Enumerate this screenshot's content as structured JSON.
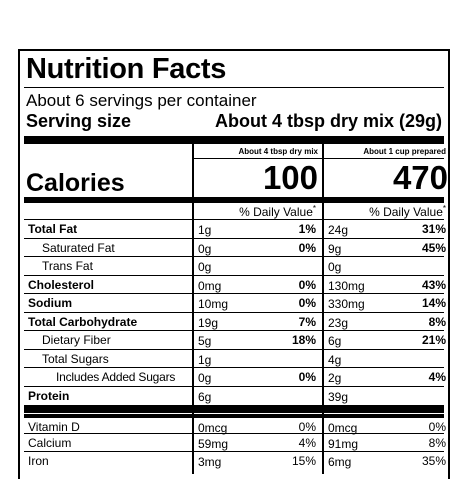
{
  "label": {
    "title": "Nutrition Facts",
    "servings": "About 6 servings per container",
    "serving_size_label": "Serving size",
    "serving_size_value": "About 4 tbsp dry mix (29g)",
    "col1_header": "About 4 tbsp dry mix",
    "col2_header": "About 1 cup prepared",
    "calories_label": "Calories",
    "calories_col1": "100",
    "calories_col2": "470",
    "dv_header": "% Daily Value",
    "dv_asterisk": "*",
    "rows": [
      {
        "name": "Total Fat",
        "bold": true,
        "a1": "1g",
        "p1": "1%",
        "a2": "24g",
        "p2": "31%"
      },
      {
        "name": "Saturated Fat",
        "bold": false,
        "a1": "0g",
        "p1": "0%",
        "a2": "9g",
        "p2": "45%"
      },
      {
        "name": "Trans Fat",
        "bold": false,
        "a1": "0g",
        "p1": "",
        "a2": "0g",
        "p2": ""
      },
      {
        "name": "Cholesterol",
        "bold": true,
        "a1": "0mg",
        "p1": "0%",
        "a2": "130mg",
        "p2": "43%"
      },
      {
        "name": "Sodium",
        "bold": true,
        "a1": "10mg",
        "p1": "0%",
        "a2": "330mg",
        "p2": "14%"
      },
      {
        "name": "Total Carbohydrate",
        "bold": true,
        "a1": "19g",
        "p1": "7%",
        "a2": "23g",
        "p2": "8%"
      },
      {
        "name": "Dietary Fiber",
        "bold": false,
        "a1": "5g",
        "p1": "18%",
        "a2": "6g",
        "p2": "21%"
      },
      {
        "name": "Total Sugars",
        "bold": false,
        "a1": "1g",
        "p1": "",
        "a2": "4g",
        "p2": ""
      },
      {
        "name": "Includes Added Sugars",
        "bold": false,
        "a1": "0g",
        "p1": "0%",
        "a2": "2g",
        "p2": "4%"
      },
      {
        "name": "Protein",
        "bold": true,
        "a1": "6g",
        "p1": "",
        "a2": "39g",
        "p2": ""
      },
      {
        "name": "Vitamin D",
        "bold": false,
        "a1": "0mcg",
        "p1": "0%",
        "a2": "0mcg",
        "p2": "0%"
      },
      {
        "name": "Calcium",
        "bold": false,
        "a1": "59mg",
        "p1": "4%",
        "a2": "91mg",
        "p2": "8%"
      },
      {
        "name": "Iron",
        "bold": false,
        "a1": "3mg",
        "p1": "15%",
        "a2": "6mg",
        "p2": "35%"
      }
    ]
  }
}
